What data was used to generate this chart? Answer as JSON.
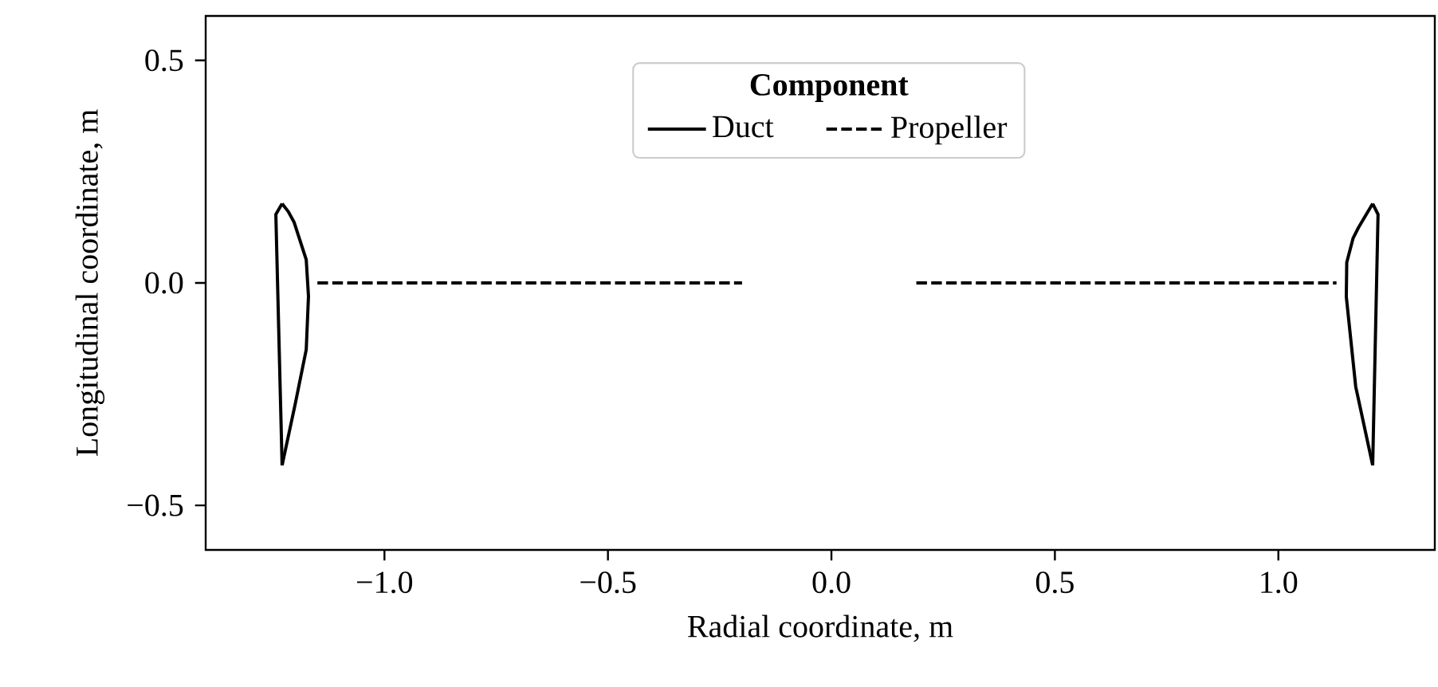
{
  "chart_data": {
    "type": "line",
    "xlabel": "Radial coordinate, m",
    "ylabel": "Longitudinal coordinate, m",
    "legend_title": "Component",
    "legend": "top",
    "xlim": [
      -1.4,
      1.35
    ],
    "ylim": [
      -0.6,
      0.6
    ],
    "xticks": [
      {
        "value": -1.0,
        "label": "−1.0"
      },
      {
        "value": -0.5,
        "label": "−0.5"
      },
      {
        "value": 0,
        "label": "0.0"
      },
      0.5,
      {
        "value": 1.0,
        "label": "1.0"
      }
    ],
    "yticks": [
      {
        "value": -0.5,
        "label": "−0.5"
      },
      {
        "value": 0,
        "label": "0.0"
      },
      0.5
    ],
    "series": [
      {
        "name": "Duct",
        "color": "#000000",
        "line_style": "solid",
        "x": [
          -1.229,
          -1.215,
          -1.202,
          -1.175,
          -1.17,
          -1.175,
          -1.199,
          -1.229
        ],
        "values": [
          0.178,
          0.16,
          0.136,
          0.052,
          -0.03,
          -0.15,
          -0.269,
          -0.41
        ]
      },
      {
        "name": "Propeller",
        "color": "#000000",
        "line_style": "dashed",
        "x": [
          -1.15,
          -0.2
        ],
        "values": [
          0,
          0
        ]
      },
      {
        "color": "#000000",
        "line_style": "solid",
        "x": [
          -1.229,
          -1.243,
          -1.229
        ],
        "values": [
          -0.41,
          0.154,
          0.178
        ]
      },
      {
        "color": "#000000",
        "line_style": "solid",
        "x": [
          1.211,
          1.173,
          1.152,
          1.153,
          1.167,
          1.179,
          1.211
        ],
        "values": [
          -0.41,
          -0.233,
          -0.031,
          0.046,
          0.1,
          0.124,
          0.178
        ]
      },
      {
        "color": "#000000",
        "line_style": "solid",
        "x": [
          1.211,
          1.223,
          1.211
        ],
        "values": [
          0.178,
          0.154,
          -0.41
        ]
      },
      {
        "color": "#000000",
        "line_style": "dashed",
        "x": [
          0.19,
          1.13
        ],
        "values": [
          0,
          0
        ]
      }
    ]
  }
}
